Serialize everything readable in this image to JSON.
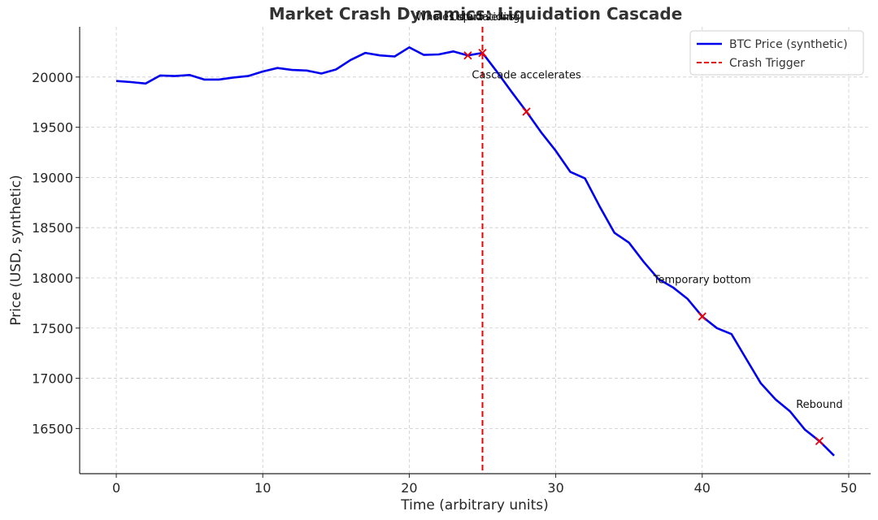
{
  "chart_data": {
    "type": "line",
    "title": "Market Crash Dynamics: Liquidation Cascade",
    "xlabel": "Time (arbitrary units)",
    "ylabel": "Price (USD, synthetic)",
    "xlim": [
      -2.5,
      51.5
    ],
    "ylim": [
      16050,
      20500
    ],
    "xticks": [
      0,
      10,
      20,
      30,
      40,
      50
    ],
    "yticks": [
      16500,
      17000,
      17500,
      18000,
      18500,
      19000,
      19500,
      20000
    ],
    "grid": true,
    "legend_position": "top-right",
    "series": [
      {
        "name": "BTC Price (synthetic)",
        "color": "#0000ee",
        "x": [
          0,
          1,
          2,
          3,
          4,
          5,
          6,
          7,
          8,
          9,
          10,
          11,
          12,
          13,
          14,
          15,
          16,
          17,
          18,
          19,
          20,
          21,
          22,
          23,
          24,
          25,
          26,
          27,
          28,
          29,
          30,
          31,
          32,
          33,
          34,
          35,
          36,
          37,
          38,
          39,
          40,
          41,
          42,
          43,
          44,
          45,
          46,
          47,
          48,
          49
        ],
        "values": [
          19960,
          19950,
          19935,
          20015,
          20010,
          20020,
          19975,
          19975,
          19995,
          20010,
          20055,
          20090,
          20070,
          20065,
          20035,
          20075,
          20170,
          20240,
          20215,
          20205,
          20295,
          20220,
          20225,
          20255,
          20215,
          20240,
          20050,
          19850,
          19655,
          19450,
          19265,
          19055,
          18990,
          18710,
          18450,
          18350,
          18160,
          17990,
          17905,
          17790,
          17615,
          17500,
          17440,
          17195,
          16950,
          16790,
          16670,
          16490,
          16375,
          16230
        ]
      }
    ],
    "vline": {
      "name": "Crash Trigger",
      "x": 25,
      "color": "#ee0000"
    },
    "markers": [
      {
        "x": 24,
        "y": 20215
      },
      {
        "x": 25,
        "y": 20240
      },
      {
        "x": 28,
        "y": 19655
      },
      {
        "x": 40,
        "y": 17615
      },
      {
        "x": 48,
        "y": 16375
      }
    ],
    "annotations": [
      {
        "text": "Whales start selling",
        "x": 24,
        "y": 20215,
        "anchor": "middle",
        "dy": -43
      },
      {
        "text": "Liquidations",
        "x": 25,
        "y": 20240,
        "anchor": "middle",
        "dy": -40
      },
      {
        "text": "Cascade accelerates",
        "x": 28,
        "y": 19655,
        "anchor": "middle",
        "dy": -41
      },
      {
        "text": "Temporary bottom",
        "x": 40,
        "y": 17615,
        "anchor": "middle",
        "dy": -41
      },
      {
        "text": "Rebound",
        "x": 48,
        "y": 16375,
        "anchor": "middle",
        "dy": -41
      }
    ]
  }
}
